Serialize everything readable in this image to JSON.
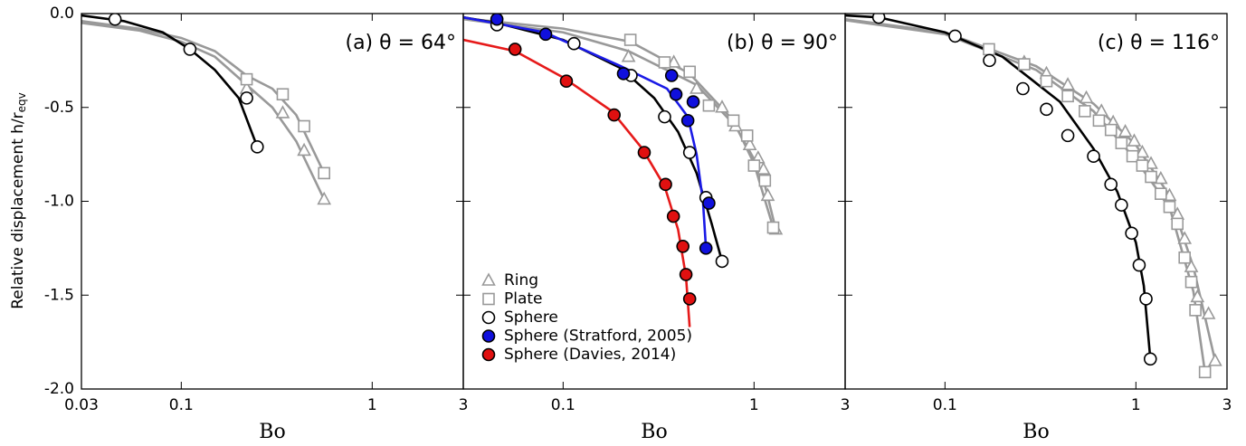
{
  "chart_data": [
    {
      "type": "scatter",
      "title": "(a) θ = 64°",
      "x_label": "Bo",
      "y_label": "Relative displacement h/r",
      "y_label_subscript": "eqv",
      "xscale": "log",
      "xlim": [
        0.03,
        3
      ],
      "ylim": [
        -2,
        0
      ],
      "xticks": [
        0.03,
        0.1,
        1,
        3
      ],
      "yticks": [
        {
          "value": 0,
          "label": "0.0"
        },
        {
          "value": -0.5,
          "label": "-0.5"
        },
        {
          "value": -1,
          "label": "-1.0"
        },
        {
          "value": -1.5,
          "label": "-1.5"
        },
        {
          "value": -2,
          "label": "-2.0"
        }
      ],
      "ytick_labels": true,
      "series": [
        {
          "name": "Ring",
          "marker": "triangle",
          "color": "#999999",
          "face": "#ffffff",
          "edge": "#999999",
          "x": [
            0.22,
            0.34,
            0.44,
            0.56
          ],
          "values": [
            -0.4,
            -0.53,
            -0.73,
            -0.99
          ],
          "fit": {
            "x": [
              0.03,
              0.06,
              0.1,
              0.15,
              0.22,
              0.3,
              0.4,
              0.56
            ],
            "y": [
              -0.05,
              -0.09,
              -0.15,
              -0.23,
              -0.38,
              -0.5,
              -0.68,
              -0.99
            ]
          }
        },
        {
          "name": "Plate",
          "marker": "square",
          "color": "#999999",
          "face": "#ffffff",
          "edge": "#999999",
          "x": [
            0.22,
            0.34,
            0.44,
            0.56
          ],
          "values": [
            -0.35,
            -0.43,
            -0.6,
            -0.85
          ],
          "fit": {
            "x": [
              0.03,
              0.06,
              0.1,
              0.15,
              0.22,
              0.3,
              0.4,
              0.56
            ],
            "y": [
              -0.04,
              -0.08,
              -0.13,
              -0.2,
              -0.33,
              -0.4,
              -0.54,
              -0.85
            ]
          }
        },
        {
          "name": "Sphere",
          "marker": "circle",
          "color": "#000000",
          "face": "#ffffff",
          "edge": "#000000",
          "x": [
            0.045,
            0.111,
            0.22,
            0.25
          ],
          "values": [
            -0.03,
            -0.19,
            -0.45,
            -0.71
          ],
          "fit": {
            "x": [
              0.03,
              0.05,
              0.08,
              0.111,
              0.15,
              0.2,
              0.25
            ],
            "y": [
              -0.01,
              -0.04,
              -0.1,
              -0.19,
              -0.3,
              -0.45,
              -0.71
            ]
          }
        }
      ]
    },
    {
      "type": "scatter",
      "title": "(b) θ = 90°",
      "x_label": "Bo",
      "xscale": "log",
      "xlim": [
        0.03,
        3
      ],
      "ylim": [
        -2,
        0
      ],
      "xticks": [
        0.1,
        1,
        3
      ],
      "yticks": [
        0,
        -0.5,
        -1,
        -1.5,
        -2
      ],
      "ytick_labels": false,
      "legend": "lower left",
      "series": [
        {
          "name": "Ring",
          "marker": "triangle",
          "color": "#999999",
          "face": "#ffffff",
          "edge": "#999999",
          "x": [
            0.22,
            0.38,
            0.5,
            0.68,
            0.8,
            0.95,
            1.05,
            1.12,
            1.18,
            1.3
          ],
          "values": [
            -0.23,
            -0.26,
            -0.4,
            -0.5,
            -0.6,
            -0.7,
            -0.77,
            -0.83,
            -0.97,
            -1.15
          ],
          "fit": {
            "x": [
              0.03,
              0.1,
              0.22,
              0.5,
              0.8,
              1.1,
              1.3
            ],
            "y": [
              -0.03,
              -0.1,
              -0.2,
              -0.38,
              -0.6,
              -0.85,
              -1.15
            ]
          }
        },
        {
          "name": "Plate",
          "marker": "square",
          "color": "#999999",
          "face": "#ffffff",
          "edge": "#999999",
          "x": [
            0.225,
            0.34,
            0.46,
            0.58,
            0.78,
            0.92,
            1.0,
            1.14,
            1.26
          ],
          "values": [
            -0.14,
            -0.26,
            -0.31,
            -0.49,
            -0.57,
            -0.65,
            -0.81,
            -0.89,
            -1.14
          ],
          "fit": {
            "x": [
              0.03,
              0.1,
              0.225,
              0.46,
              0.78,
              1.0,
              1.26
            ],
            "y": [
              -0.025,
              -0.08,
              -0.15,
              -0.32,
              -0.57,
              -0.8,
              -1.14
            ]
          }
        },
        {
          "name": "Sphere",
          "marker": "circle",
          "color": "#000000",
          "face": "#ffffff",
          "edge": "#000000",
          "x": [
            0.045,
            0.114,
            0.227,
            0.34,
            0.46,
            0.56,
            0.68
          ],
          "values": [
            -0.06,
            -0.16,
            -0.33,
            -0.55,
            -0.74,
            -0.98,
            -1.32
          ],
          "fit": {
            "x": [
              0.03,
              0.045,
              0.1,
              0.2,
              0.3,
              0.4,
              0.5,
              0.6,
              0.68
            ],
            "y": [
              -0.02,
              -0.05,
              -0.14,
              -0.29,
              -0.45,
              -0.63,
              -0.85,
              -1.12,
              -1.32
            ]
          }
        },
        {
          "name": "Sphere (Stratford, 2005)",
          "marker": "circle",
          "color": "#1a1ae6",
          "face": "#1010dd",
          "edge": "#000000",
          "x": [
            0.045,
            0.081,
            0.207,
            0.37,
            0.39,
            0.45,
            0.48,
            0.58,
            0.56
          ],
          "values": [
            -0.03,
            -0.11,
            -0.32,
            -0.33,
            -0.43,
            -0.57,
            -0.47,
            -1.01,
            -1.25
          ],
          "fit": {
            "x": [
              0.03,
              0.08,
              0.2,
              0.35,
              0.45,
              0.5,
              0.54,
              0.56
            ],
            "y": [
              -0.02,
              -0.1,
              -0.28,
              -0.4,
              -0.55,
              -0.75,
              -1.0,
              -1.25
            ]
          }
        },
        {
          "name": "Sphere (Davies, 2014)",
          "marker": "circle",
          "color": "#e61a1a",
          "face": "#e01010",
          "edge": "#000000",
          "x": [
            0.056,
            0.104,
            0.185,
            0.266,
            0.344,
            0.378,
            0.424,
            0.44,
            0.46
          ],
          "values": [
            -0.19,
            -0.36,
            -0.54,
            -0.74,
            -0.91,
            -1.08,
            -1.24,
            -1.39,
            -1.52
          ],
          "fit": {
            "x": [
              0.03,
              0.056,
              0.1,
              0.18,
              0.26,
              0.34,
              0.4,
              0.44,
              0.46
            ],
            "y": [
              -0.14,
              -0.2,
              -0.34,
              -0.52,
              -0.72,
              -0.92,
              -1.15,
              -1.4,
              -1.67
            ]
          }
        }
      ]
    },
    {
      "type": "scatter",
      "title": "(c) θ = 116°",
      "x_label": "Bo",
      "xscale": "log",
      "xlim": [
        0.03,
        3
      ],
      "ylim": [
        -2,
        0
      ],
      "xticks": [
        0.1,
        1,
        3
      ],
      "yticks": [
        0,
        -0.5,
        -1,
        -1.5,
        -2
      ],
      "ytick_labels": false,
      "series": [
        {
          "name": "Ring",
          "marker": "triangle",
          "color": "#999999",
          "face": "#ffffff",
          "edge": "#999999",
          "x": [
            0.26,
            0.34,
            0.44,
            0.55,
            0.66,
            0.76,
            0.88,
            0.98,
            1.08,
            1.2,
            1.35,
            1.5,
            1.65,
            1.8,
            1.95,
            2.1,
            2.4,
            2.6
          ],
          "values": [
            -0.26,
            -0.32,
            -0.38,
            -0.45,
            -0.52,
            -0.58,
            -0.63,
            -0.68,
            -0.74,
            -0.8,
            -0.88,
            -0.97,
            -1.07,
            -1.2,
            -1.35,
            -1.51,
            -1.6,
            -1.85
          ],
          "fit": {
            "x": [
              0.03,
              0.1,
              0.3,
              0.6,
              1,
              1.5,
              2,
              2.6
            ],
            "y": [
              -0.03,
              -0.1,
              -0.28,
              -0.48,
              -0.7,
              -0.97,
              -1.35,
              -1.85
            ]
          }
        },
        {
          "name": "Plate",
          "marker": "square",
          "color": "#999999",
          "face": "#ffffff",
          "edge": "#999999",
          "x": [
            0.17,
            0.26,
            0.34,
            0.44,
            0.54,
            0.64,
            0.74,
            0.84,
            0.96,
            1.08,
            1.2,
            1.35,
            1.5,
            1.65,
            1.8,
            1.95,
            2.05,
            2.3
          ],
          "values": [
            -0.19,
            -0.27,
            -0.36,
            -0.44,
            -0.52,
            -0.57,
            -0.62,
            -0.69,
            -0.76,
            -0.81,
            -0.87,
            -0.96,
            -1.03,
            -1.12,
            -1.3,
            -1.43,
            -1.58,
            -1.91
          ],
          "fit": {
            "x": [
              0.03,
              0.1,
              0.3,
              0.6,
              1,
              1.5,
              2,
              2.3
            ],
            "y": [
              -0.035,
              -0.11,
              -0.3,
              -0.52,
              -0.78,
              -1.03,
              -1.48,
              -1.91
            ]
          }
        },
        {
          "name": "Sphere",
          "marker": "circle",
          "color": "#000000",
          "face": "#ffffff",
          "edge": "#000000",
          "x": [
            0.045,
            0.113,
            0.171,
            0.256,
            0.34,
            0.44,
            0.6,
            0.74,
            0.84,
            0.95,
            1.04,
            1.13,
            1.19
          ],
          "values": [
            -0.02,
            -0.12,
            -0.25,
            -0.4,
            -0.51,
            -0.65,
            -0.76,
            -0.91,
            -1.02,
            -1.17,
            -1.34,
            -1.52,
            -1.84
          ],
          "fit": {
            "x": [
              0.03,
              0.045,
              0.1,
              0.2,
              0.4,
              0.6,
              0.8,
              1.0,
              1.1,
              1.19
            ],
            "y": [
              -0.01,
              -0.02,
              -0.1,
              -0.23,
              -0.47,
              -0.72,
              -0.95,
              -1.22,
              -1.45,
              -1.84
            ]
          }
        }
      ]
    }
  ]
}
